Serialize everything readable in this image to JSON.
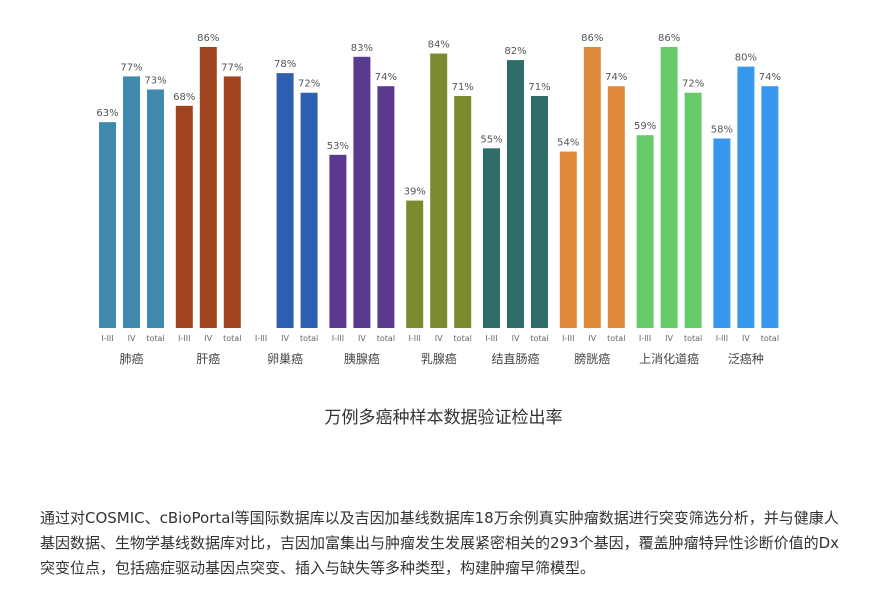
{
  "chart_data": {
    "type": "bar",
    "title": "万例多癌种样本数据验证检出率",
    "sub_categories": [
      "I-III",
      "IV",
      "total"
    ],
    "ylim": [
      0,
      90
    ],
    "grid": false,
    "groups": [
      {
        "name": "肺癌",
        "color": "#3f8aad",
        "values": [
          63,
          77,
          73
        ]
      },
      {
        "name": "肝癌",
        "color": "#a0431f",
        "values": [
          68,
          86,
          77
        ]
      },
      {
        "name": "卵巢癌",
        "color": "#2e5fb0",
        "values": [
          null,
          78,
          72
        ]
      },
      {
        "name": "胰腺癌",
        "color": "#5a3a8e",
        "values": [
          53,
          83,
          74
        ]
      },
      {
        "name": "乳腺癌",
        "color": "#7a8a2e",
        "values": [
          39,
          84,
          71
        ]
      },
      {
        "name": "结直肠癌",
        "color": "#2f6d6b",
        "values": [
          55,
          82,
          71
        ]
      },
      {
        "name": "膀胱癌",
        "color": "#df8a3a",
        "values": [
          54,
          86,
          74
        ]
      },
      {
        "name": "上消化道癌",
        "color": "#66c96a",
        "values": [
          59,
          86,
          72
        ]
      },
      {
        "name": "泛癌种",
        "color": "#3798f0",
        "values": [
          58,
          80,
          74
        ]
      }
    ]
  },
  "description": "通过对COSMIC、cBioPortal等国际数据库以及吉因加基线数据库18万余例真实肿瘤数据进行突变筛选分析，并与健康人基因数据、生物学基线数据库对比，吉因加富集出与肿瘤发生发展紧密相关的293个基因，覆盖肿瘤特异性诊断价值的Dx突变位点，包括癌症驱动基因点突变、插入与缺失等多种类型，构建肿瘤早筛模型。"
}
